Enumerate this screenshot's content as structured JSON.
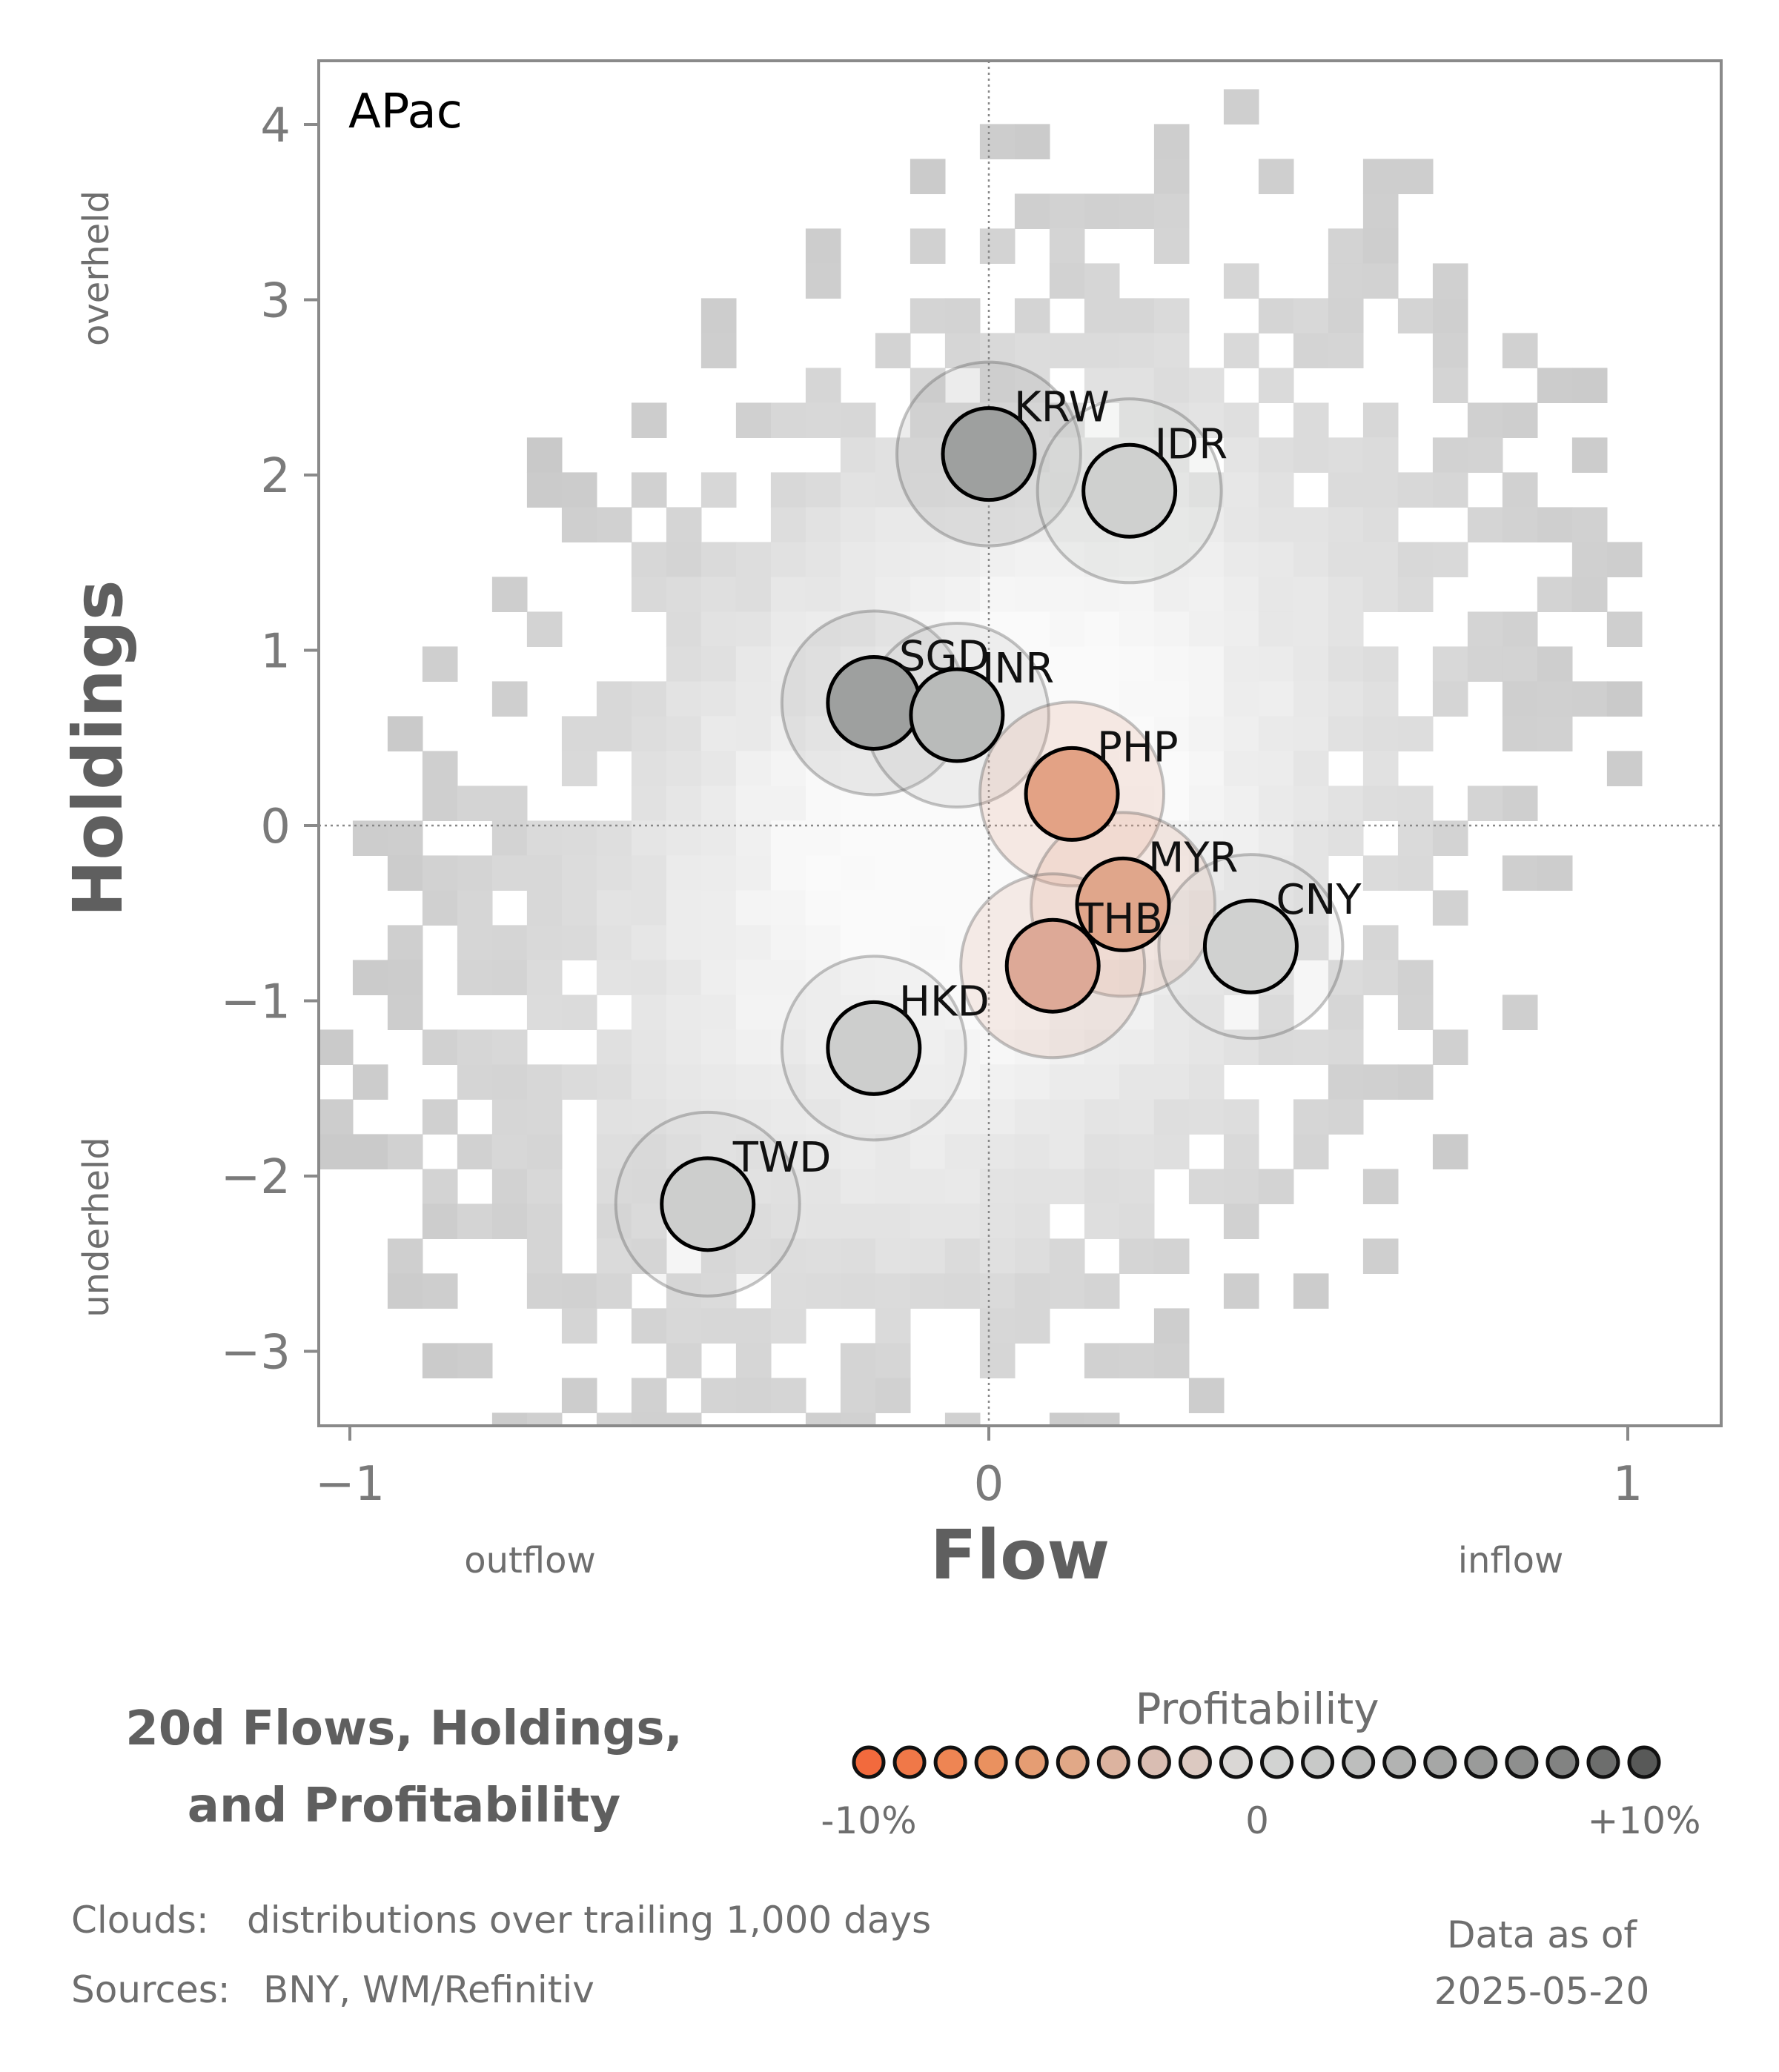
{
  "chart_data": {
    "type": "scatter",
    "panel_label": "APac",
    "xlabel": "Flow",
    "ylabel": "Holdings",
    "xlim": [
      -1.05,
      1.15
    ],
    "ylim": [
      -3.4,
      4.4
    ],
    "x_ticks": [
      {
        "value": -1,
        "label": "−1"
      },
      {
        "value": 0,
        "label": "0"
      },
      {
        "value": 1,
        "label": "1"
      }
    ],
    "y_ticks": [
      {
        "value": 4,
        "label": "4"
      },
      {
        "value": 3,
        "label": "3"
      },
      {
        "value": 2,
        "label": "2"
      },
      {
        "value": 1,
        "label": "1"
      },
      {
        "value": 0,
        "label": "0"
      },
      {
        "value": -1,
        "label": "−1"
      },
      {
        "value": -2,
        "label": "−2"
      },
      {
        "value": -3,
        "label": "−3"
      }
    ],
    "x_side_labels": {
      "low": "outflow",
      "high": "inflow"
    },
    "y_side_labels": {
      "low": "underheld",
      "high": "overheld"
    },
    "points": [
      {
        "label": "KRW",
        "x": 0.0,
        "y": 2.12,
        "color": "#9ea09f"
      },
      {
        "label": "IDR",
        "x": 0.22,
        "y": 1.91,
        "color": "#cfd0cf"
      },
      {
        "label": "SGD",
        "x": -0.18,
        "y": 0.7,
        "color": "#9ea09f"
      },
      {
        "label": "INR",
        "x": -0.05,
        "y": 0.63,
        "color": "#b9bbba"
      },
      {
        "label": "PHP",
        "x": 0.13,
        "y": 0.18,
        "color": "#e3a285"
      },
      {
        "label": "MYR",
        "x": 0.21,
        "y": -0.45,
        "color": "#e0a68b"
      },
      {
        "label": "THB",
        "x": 0.1,
        "y": -0.8,
        "color": "#dda997"
      },
      {
        "label": "CNY",
        "x": 0.41,
        "y": -0.69,
        "color": "#d0d1d0"
      },
      {
        "label": "HKD",
        "x": -0.18,
        "y": -1.27,
        "color": "#cdcecd"
      },
      {
        "label": "TWD",
        "x": -0.44,
        "y": -2.16,
        "color": "#cdcecd"
      }
    ],
    "cloud_note": "distributions over trailing 1,000 days"
  },
  "legend": {
    "title_line1": "20d Flows, Holdings,",
    "title_line2": "and Profitability",
    "heading": "Profitability",
    "min_label": "-10%",
    "mid_label": "0",
    "max_label": "+10%",
    "colors": [
      "#f26a3d",
      "#f07848",
      "#ee8553",
      "#ea915f",
      "#e59d73",
      "#e1a887",
      "#dcb39f",
      "#d9bdb2",
      "#dcc9c1",
      "#dad7d5",
      "#d2d3d2",
      "#c8c9c8",
      "#bdbebd",
      "#b2b3b2",
      "#a6a7a6",
      "#9a9b9a",
      "#8e8f8e",
      "#828382",
      "#6d6e6d",
      "#585958"
    ]
  },
  "footer": {
    "clouds_prefix": "Clouds:",
    "clouds_text": "distributions over trailing 1,000 days",
    "sources_prefix": "Sources:",
    "sources_text": "BNY, WM/Refinitiv",
    "date_line1": "Data as of",
    "date_line2": "2025-05-20"
  }
}
